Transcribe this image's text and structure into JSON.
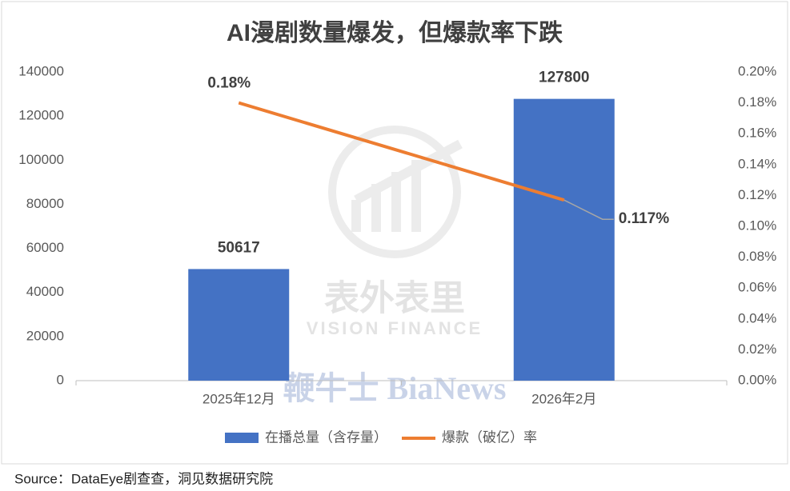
{
  "chart_data": {
    "type": "bar_line",
    "title": "AI漫剧数量爆发，但爆款率下跌",
    "categories": [
      "2025年12月",
      "2026年2月"
    ],
    "series": [
      {
        "name": "在播总量（含存量）",
        "type": "bar",
        "color": "#4472c4",
        "values": [
          50617,
          127800
        ]
      },
      {
        "name": "爆款（破亿）率",
        "type": "line",
        "axis": "y2",
        "color": "#ed7d31",
        "values": [
          0.18,
          0.117
        ],
        "value_labels": [
          "0.18%",
          "0.117%"
        ]
      }
    ],
    "ylim": [
      0,
      140000
    ],
    "yticks": [
      0,
      20000,
      40000,
      60000,
      80000,
      100000,
      120000,
      140000
    ],
    "y2lim": [
      0,
      0.2
    ],
    "y2ticks": [
      {
        "value": 0,
        "label": "0.00%"
      },
      {
        "value": 0.02,
        "label": "0.02%"
      },
      {
        "value": 0.04,
        "label": "0.04%"
      },
      {
        "value": 0.06,
        "label": "0.06%"
      },
      {
        "value": 0.08,
        "label": "0.08%"
      },
      {
        "value": 0.1,
        "label": "0.10%"
      },
      {
        "value": 0.12,
        "label": "0.12%"
      },
      {
        "value": 0.14,
        "label": "0.14%"
      },
      {
        "value": 0.16,
        "label": "0.16%"
      },
      {
        "value": 0.18,
        "label": "0.18%"
      },
      {
        "value": 0.2,
        "label": "0.20%"
      }
    ],
    "grid": false,
    "legend": "bottom",
    "watermarks": [
      "表外表里",
      "VISION FINANCE",
      "鞭牛士 BiaNews"
    ],
    "source": "Source：DataEye剧查查，洞见数据研究院"
  }
}
